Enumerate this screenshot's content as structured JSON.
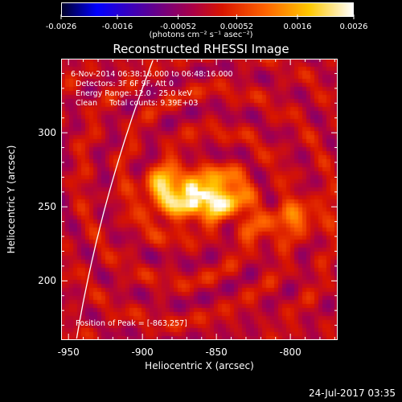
{
  "chart_data": {
    "type": "heatmap",
    "title": "Reconstructed RHESSI Image",
    "xlabel": "Heliocentric X (arcsec)",
    "ylabel": "Heliocentric Y (arcsec)",
    "xlim": [
      -955,
      -768
    ],
    "ylim": [
      160,
      350
    ],
    "xticks": [
      -950,
      -900,
      -850,
      -800
    ],
    "yticks": [
      200,
      250,
      300
    ],
    "colorbar": {
      "range": [
        -0.0026,
        0.0026
      ],
      "tick_labels": [
        "-0.0026",
        "-0.0016",
        "-0.00052",
        "0.00052",
        "0.0016",
        "0.0026"
      ],
      "tick_values": [
        -0.0026,
        -0.0016,
        -0.00052,
        0.00052,
        0.0016,
        0.0026
      ],
      "units": "(photons cm⁻² s⁻¹ asec⁻²)"
    },
    "annotations": [
      "6-Nov-2014 06:38:16.000 to 06:48:16.000",
      "Detectors: 3F 6F 9F, Att 0",
      "Energy Range: 12.0 - 25.0 keV",
      "Clean     Total counts: 9.39E+03",
      "Position of Peak = [-863,257]"
    ],
    "peak": {
      "x": -863,
      "y": 257
    }
  },
  "footer": {
    "date_stamp": "24-Jul-2017 03:35"
  },
  "colors": {
    "background": "#000000",
    "text": "#ffffff"
  }
}
